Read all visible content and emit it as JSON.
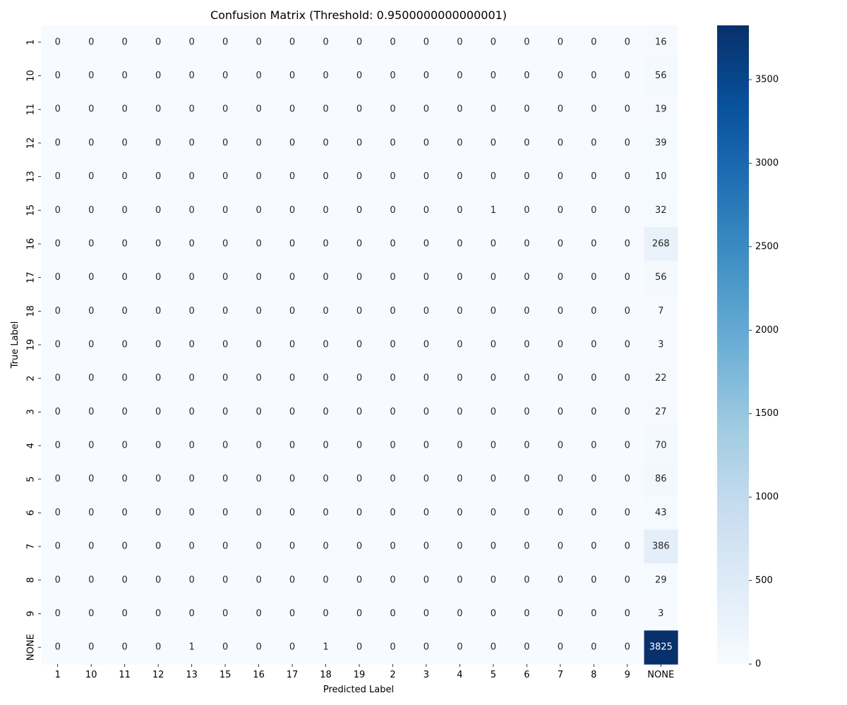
{
  "chart_data": {
    "type": "heatmap",
    "title": "Confusion Matrix (Threshold: 0.9500000000000001)",
    "xlabel": "Predicted Label",
    "ylabel": "True Label",
    "categories_x": [
      "1",
      "10",
      "11",
      "12",
      "13",
      "15",
      "16",
      "17",
      "18",
      "19",
      "2",
      "3",
      "4",
      "5",
      "6",
      "7",
      "8",
      "9",
      "NONE"
    ],
    "categories_y": [
      "1",
      "10",
      "11",
      "12",
      "13",
      "15",
      "16",
      "17",
      "18",
      "19",
      "2",
      "3",
      "4",
      "5",
      "6",
      "7",
      "8",
      "9",
      "NONE"
    ],
    "values": [
      [
        0,
        0,
        0,
        0,
        0,
        0,
        0,
        0,
        0,
        0,
        0,
        0,
        0,
        0,
        0,
        0,
        0,
        0,
        16
      ],
      [
        0,
        0,
        0,
        0,
        0,
        0,
        0,
        0,
        0,
        0,
        0,
        0,
        0,
        0,
        0,
        0,
        0,
        0,
        56
      ],
      [
        0,
        0,
        0,
        0,
        0,
        0,
        0,
        0,
        0,
        0,
        0,
        0,
        0,
        0,
        0,
        0,
        0,
        0,
        19
      ],
      [
        0,
        0,
        0,
        0,
        0,
        0,
        0,
        0,
        0,
        0,
        0,
        0,
        0,
        0,
        0,
        0,
        0,
        0,
        39
      ],
      [
        0,
        0,
        0,
        0,
        0,
        0,
        0,
        0,
        0,
        0,
        0,
        0,
        0,
        0,
        0,
        0,
        0,
        0,
        10
      ],
      [
        0,
        0,
        0,
        0,
        0,
        0,
        0,
        0,
        0,
        0,
        0,
        0,
        0,
        1,
        0,
        0,
        0,
        0,
        32
      ],
      [
        0,
        0,
        0,
        0,
        0,
        0,
        0,
        0,
        0,
        0,
        0,
        0,
        0,
        0,
        0,
        0,
        0,
        0,
        268
      ],
      [
        0,
        0,
        0,
        0,
        0,
        0,
        0,
        0,
        0,
        0,
        0,
        0,
        0,
        0,
        0,
        0,
        0,
        0,
        56
      ],
      [
        0,
        0,
        0,
        0,
        0,
        0,
        0,
        0,
        0,
        0,
        0,
        0,
        0,
        0,
        0,
        0,
        0,
        0,
        7
      ],
      [
        0,
        0,
        0,
        0,
        0,
        0,
        0,
        0,
        0,
        0,
        0,
        0,
        0,
        0,
        0,
        0,
        0,
        0,
        3
      ],
      [
        0,
        0,
        0,
        0,
        0,
        0,
        0,
        0,
        0,
        0,
        0,
        0,
        0,
        0,
        0,
        0,
        0,
        0,
        22
      ],
      [
        0,
        0,
        0,
        0,
        0,
        0,
        0,
        0,
        0,
        0,
        0,
        0,
        0,
        0,
        0,
        0,
        0,
        0,
        27
      ],
      [
        0,
        0,
        0,
        0,
        0,
        0,
        0,
        0,
        0,
        0,
        0,
        0,
        0,
        0,
        0,
        0,
        0,
        0,
        70
      ],
      [
        0,
        0,
        0,
        0,
        0,
        0,
        0,
        0,
        0,
        0,
        0,
        0,
        0,
        0,
        0,
        0,
        0,
        0,
        86
      ],
      [
        0,
        0,
        0,
        0,
        0,
        0,
        0,
        0,
        0,
        0,
        0,
        0,
        0,
        0,
        0,
        0,
        0,
        0,
        43
      ],
      [
        0,
        0,
        0,
        0,
        0,
        0,
        0,
        0,
        0,
        0,
        0,
        0,
        0,
        0,
        0,
        0,
        0,
        0,
        386
      ],
      [
        0,
        0,
        0,
        0,
        0,
        0,
        0,
        0,
        0,
        0,
        0,
        0,
        0,
        0,
        0,
        0,
        0,
        0,
        29
      ],
      [
        0,
        0,
        0,
        0,
        0,
        0,
        0,
        0,
        0,
        0,
        0,
        0,
        0,
        0,
        0,
        0,
        0,
        0,
        3
      ],
      [
        0,
        0,
        0,
        0,
        1,
        0,
        0,
        0,
        1,
        0,
        0,
        0,
        0,
        0,
        0,
        0,
        0,
        0,
        3825
      ]
    ],
    "colorbar": {
      "colormap": "Blues",
      "min": 0,
      "max": 3825,
      "ticks": [
        0,
        500,
        1000,
        1500,
        2000,
        2500,
        3000,
        3500
      ],
      "tick_labels": [
        "0",
        "500",
        "1000",
        "1500",
        "2000",
        "2500",
        "3000",
        "3500"
      ]
    },
    "annotations": true,
    "grid": false
  }
}
